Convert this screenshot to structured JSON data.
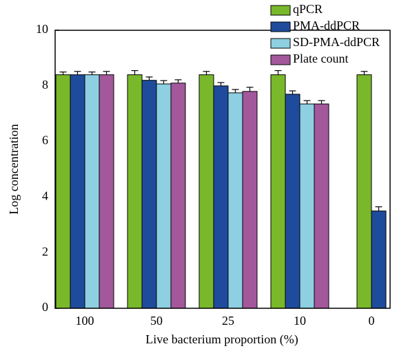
{
  "chart_data": {
    "type": "bar",
    "x_label": "Live bacterium proportion (%)",
    "y_label": "Log concentration",
    "categories": [
      "100",
      "50",
      "25",
      "10",
      "0"
    ],
    "series": [
      {
        "name": "qPCR",
        "color": "#79b82a",
        "values": [
          8.4,
          8.4,
          8.4,
          8.4,
          8.4
        ],
        "errors": [
          0.1,
          0.15,
          0.12,
          0.15,
          0.12
        ]
      },
      {
        "name": "PMA-ddPCR",
        "color": "#1f4b9c",
        "values": [
          8.4,
          8.2,
          8.0,
          7.7,
          3.5
        ],
        "errors": [
          0.12,
          0.12,
          0.12,
          0.12,
          0.15
        ]
      },
      {
        "name": "SD-PMA-ddPCR",
        "color": "#8ecfe2",
        "values": [
          8.4,
          8.07,
          7.75,
          7.35,
          null
        ],
        "errors": [
          0.1,
          0.12,
          0.12,
          0.12,
          null
        ]
      },
      {
        "name": "Plate count",
        "color": "#a3589b",
        "values": [
          8.4,
          8.1,
          7.8,
          7.35,
          null
        ],
        "errors": [
          0.12,
          0.12,
          0.15,
          0.12,
          null
        ]
      }
    ],
    "ylim": [
      0,
      10
    ],
    "yticks": [
      0,
      2,
      4,
      6,
      8,
      10
    ],
    "legend": "upper right"
  }
}
